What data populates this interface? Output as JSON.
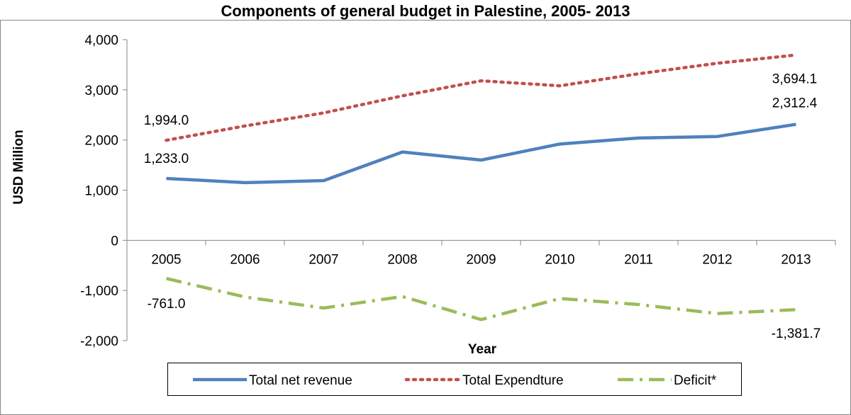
{
  "chart_data": {
    "type": "line",
    "title": "Components of general budget in Palestine, 2005- 2013",
    "xlabel": "Year",
    "ylabel": "USD Million",
    "categories": [
      "2005",
      "2006",
      "2007",
      "2008",
      "2009",
      "2010",
      "2011",
      "2012",
      "2013"
    ],
    "ylim": [
      -2000,
      4000
    ],
    "yticks": [
      -2000,
      -1000,
      0,
      1000,
      2000,
      3000,
      4000
    ],
    "ytick_labels": [
      "-2,000",
      "-1,000",
      "0",
      "1,000",
      "2,000",
      "3,000",
      "4,000"
    ],
    "grid": false,
    "legend_position": "bottom",
    "series": [
      {
        "name": "Total net revenue",
        "color": "#4F81BD",
        "style": "solid",
        "values": [
          1233.0,
          1150,
          1190,
          1760,
          1600,
          1920,
          2040,
          2070,
          2312.4
        ],
        "labels": [
          {
            "index": 0,
            "text": "1,233.0"
          },
          {
            "index": 8,
            "text": "2,312.4"
          }
        ]
      },
      {
        "name": "Total Expendture",
        "color": "#C0504D",
        "style": "dotted",
        "values": [
          1994.0,
          2280,
          2540,
          2880,
          3180,
          3080,
          3320,
          3530,
          3694.1
        ],
        "labels": [
          {
            "index": 0,
            "text": "1,994.0"
          },
          {
            "index": 8,
            "text": "3,694.1"
          }
        ]
      },
      {
        "name": "Deficit*",
        "color": "#9BBB59",
        "style": "dashdot",
        "values": [
          -761.0,
          -1130,
          -1350,
          -1120,
          -1580,
          -1160,
          -1280,
          -1460,
          -1381.7
        ],
        "labels": [
          {
            "index": 0,
            "text": "-761.0"
          },
          {
            "index": 8,
            "text": "-1,381.7"
          }
        ]
      }
    ]
  }
}
